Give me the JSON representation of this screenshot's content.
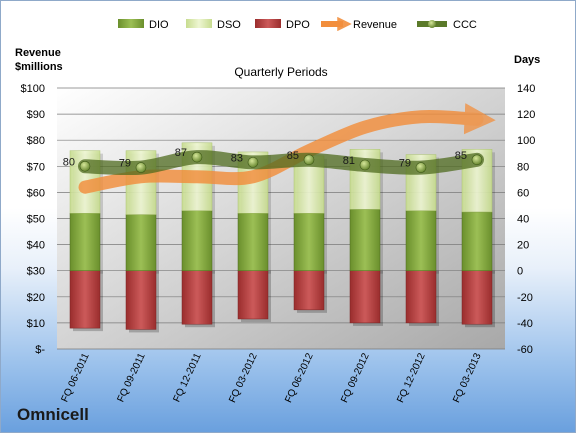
{
  "company": "Omnicell",
  "chart_data": {
    "type": "bar",
    "title": "Quarterly Periods",
    "left_axis_label": "Revenue $millions",
    "right_axis_label": "Days",
    "categories": [
      "FQ 06-2011",
      "FQ 09-2011",
      "FQ 12-2011",
      "FQ 03-2012",
      "FQ 06-2012",
      "FQ 09-2012",
      "FQ 12-2012",
      "FQ 03-2013"
    ],
    "left_ylim": [
      0,
      100
    ],
    "left_ticks": [
      "$-",
      "$10",
      "$20",
      "$30",
      "$40",
      "$50",
      "$60",
      "$70",
      "$80",
      "$90",
      "$100"
    ],
    "right_ylim": [
      -60,
      140
    ],
    "right_ticks": [
      "-60",
      "-40",
      "-20",
      "0",
      "20",
      "40",
      "60",
      "80",
      "100",
      "120",
      "140"
    ],
    "series": [
      {
        "name": "DIO",
        "axis": "days",
        "color": "#7fa33a",
        "values": [
          44,
          43,
          46,
          44,
          44,
          47,
          46,
          45
        ]
      },
      {
        "name": "DSO",
        "axis": "days",
        "color": "#d9ebaa",
        "values": [
          48,
          49,
          52,
          47,
          44,
          46,
          43,
          48
        ]
      },
      {
        "name": "DPO",
        "axis": "days",
        "color": "#b23a3a",
        "values": [
          -44,
          -45,
          -41,
          -37,
          -30,
          -40,
          -40,
          -41
        ]
      },
      {
        "name": "Revenue",
        "axis": "revenue",
        "color": "#f28e3c",
        "values": [
          62,
          66,
          66,
          66,
          76,
          85,
          89,
          88
        ]
      },
      {
        "name": "CCC",
        "axis": "days",
        "color": "#5b7a2a",
        "values": [
          80,
          79,
          87,
          83,
          85,
          81,
          79,
          85
        ]
      }
    ],
    "ccc_labels": [
      "80",
      "79",
      "87",
      "83",
      "85",
      "81",
      "79",
      "85"
    ],
    "legend_position": "top",
    "grid": true
  }
}
